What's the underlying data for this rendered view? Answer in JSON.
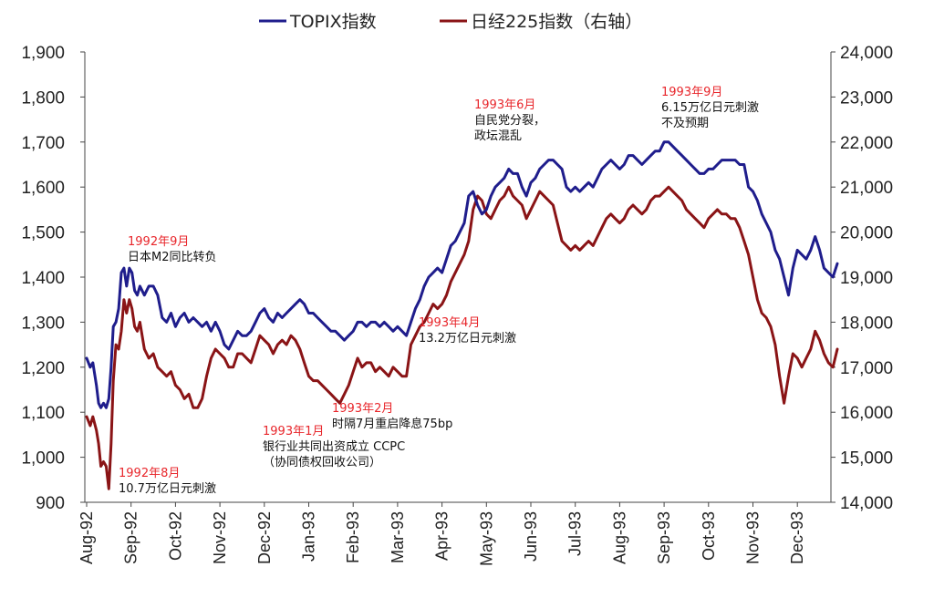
{
  "chart_data": {
    "type": "line",
    "title": "",
    "legend": [
      "TOPIX指数",
      "日经225指数（右轴）"
    ],
    "legend_position": "top",
    "x_ticks": [
      "Aug-92",
      "Sep-92",
      "Oct-92",
      "Nov-92",
      "Dec-92",
      "Jan-93",
      "Feb-93",
      "Mar-93",
      "Apr-93",
      "May-93",
      "Jun-93",
      "Jul-93",
      "Aug-93",
      "Sep-93",
      "Oct-93",
      "Nov-93",
      "Dec-93"
    ],
    "y_left": {
      "min": 900,
      "max": 1900,
      "step": 100,
      "ticks": [
        "900",
        "1,000",
        "1,100",
        "1,200",
        "1,300",
        "1,400",
        "1,500",
        "1,600",
        "1,700",
        "1,800",
        "1,900"
      ]
    },
    "y_right": {
      "min": 14000,
      "max": 24000,
      "step": 1000,
      "ticks": [
        "14,000",
        "15,000",
        "16,000",
        "17,000",
        "18,000",
        "19,000",
        "20,000",
        "21,000",
        "22,000",
        "23,000",
        "24,000"
      ]
    },
    "series": [
      {
        "name": "TOPIX指数",
        "axis": "left",
        "color": "#1f1d8c",
        "x": [
          0,
          0.08,
          0.14,
          0.22,
          0.27,
          0.32,
          0.38,
          0.44,
          0.5,
          0.55,
          0.6,
          0.66,
          0.72,
          0.78,
          0.84,
          0.9,
          0.96,
          1.02,
          1.08,
          1.14,
          1.2,
          1.3,
          1.4,
          1.5,
          1.6,
          1.7,
          1.8,
          1.9,
          2.0,
          2.1,
          2.2,
          2.3,
          2.4,
          2.5,
          2.6,
          2.7,
          2.8,
          2.9,
          3.0,
          3.1,
          3.2,
          3.3,
          3.4,
          3.5,
          3.6,
          3.7,
          3.8,
          3.9,
          4.0,
          4.1,
          4.2,
          4.3,
          4.4,
          4.5,
          4.6,
          4.7,
          4.8,
          4.9,
          5.0,
          5.1,
          5.2,
          5.3,
          5.4,
          5.5,
          5.6,
          5.7,
          5.8,
          5.9,
          6.0,
          6.1,
          6.2,
          6.3,
          6.4,
          6.5,
          6.6,
          6.7,
          6.8,
          6.9,
          7.0,
          7.1,
          7.2,
          7.3,
          7.4,
          7.5,
          7.6,
          7.7,
          7.8,
          7.9,
          8.0,
          8.1,
          8.2,
          8.3,
          8.4,
          8.5,
          8.6,
          8.7,
          8.8,
          8.9,
          9.0,
          9.1,
          9.2,
          9.3,
          9.4,
          9.5,
          9.6,
          9.7,
          9.8,
          9.9,
          10.0,
          10.1,
          10.2,
          10.3,
          10.4,
          10.5,
          10.6,
          10.7,
          10.8,
          10.9,
          11.0,
          11.1,
          11.2,
          11.3,
          11.4,
          11.5,
          11.6,
          11.7,
          11.8,
          11.9,
          12.0,
          12.1,
          12.2,
          12.3,
          12.4,
          12.5,
          12.6,
          12.7,
          12.8,
          12.9,
          13.0,
          13.1,
          13.2,
          13.3,
          13.4,
          13.5,
          13.6,
          13.7,
          13.8,
          13.9,
          14.0,
          14.1,
          14.2,
          14.3,
          14.4,
          14.5,
          14.6,
          14.7,
          14.8,
          14.9,
          15.0,
          15.1,
          15.2,
          15.3,
          15.4,
          15.5,
          15.6,
          15.7,
          15.8,
          15.9,
          16.0,
          16.1,
          16.2,
          16.3,
          16.4,
          16.5,
          16.6,
          16.7,
          16.8,
          16.9
        ],
        "values": [
          1220,
          1200,
          1210,
          1160,
          1120,
          1110,
          1120,
          1110,
          1130,
          1200,
          1290,
          1300,
          1330,
          1410,
          1420,
          1380,
          1420,
          1410,
          1370,
          1360,
          1380,
          1360,
          1380,
          1380,
          1360,
          1310,
          1300,
          1320,
          1290,
          1310,
          1320,
          1300,
          1310,
          1300,
          1290,
          1300,
          1280,
          1300,
          1280,
          1250,
          1240,
          1260,
          1280,
          1270,
          1270,
          1280,
          1300,
          1320,
          1330,
          1310,
          1300,
          1320,
          1310,
          1320,
          1330,
          1340,
          1350,
          1340,
          1320,
          1320,
          1310,
          1300,
          1290,
          1280,
          1280,
          1270,
          1260,
          1270,
          1280,
          1300,
          1300,
          1290,
          1300,
          1300,
          1290,
          1300,
          1290,
          1280,
          1290,
          1280,
          1270,
          1300,
          1330,
          1350,
          1380,
          1400,
          1410,
          1420,
          1410,
          1440,
          1470,
          1480,
          1500,
          1520,
          1580,
          1590,
          1560,
          1540,
          1550,
          1580,
          1600,
          1610,
          1620,
          1640,
          1630,
          1630,
          1600,
          1580,
          1610,
          1620,
          1640,
          1650,
          1660,
          1660,
          1650,
          1640,
          1600,
          1590,
          1600,
          1590,
          1600,
          1610,
          1600,
          1620,
          1640,
          1650,
          1660,
          1650,
          1640,
          1650,
          1670,
          1670,
          1660,
          1650,
          1660,
          1670,
          1680,
          1680,
          1700,
          1700,
          1690,
          1680,
          1670,
          1660,
          1650,
          1640,
          1630,
          1630,
          1640,
          1640,
          1650,
          1660,
          1660,
          1660,
          1660,
          1650,
          1650,
          1600,
          1590,
          1570,
          1540,
          1520,
          1500,
          1460,
          1440,
          1400,
          1360,
          1420,
          1460,
          1450,
          1440,
          1460,
          1490,
          1460,
          1420,
          1410,
          1400,
          1430
        ]
      },
      {
        "name": "日经225指数（右轴）",
        "axis": "right",
        "color": "#8a1416",
        "x": [
          0,
          0.08,
          0.14,
          0.22,
          0.27,
          0.32,
          0.38,
          0.44,
          0.5,
          0.55,
          0.6,
          0.66,
          0.72,
          0.78,
          0.84,
          0.9,
          0.96,
          1.02,
          1.08,
          1.14,
          1.2,
          1.3,
          1.4,
          1.5,
          1.6,
          1.7,
          1.8,
          1.9,
          2.0,
          2.1,
          2.2,
          2.3,
          2.4,
          2.5,
          2.6,
          2.7,
          2.8,
          2.9,
          3.0,
          3.1,
          3.2,
          3.3,
          3.4,
          3.5,
          3.6,
          3.7,
          3.8,
          3.9,
          4.0,
          4.1,
          4.2,
          4.3,
          4.4,
          4.5,
          4.6,
          4.7,
          4.8,
          4.9,
          5.0,
          5.1,
          5.2,
          5.3,
          5.4,
          5.5,
          5.6,
          5.7,
          5.8,
          5.9,
          6.0,
          6.1,
          6.2,
          6.3,
          6.4,
          6.5,
          6.6,
          6.7,
          6.8,
          6.9,
          7.0,
          7.1,
          7.2,
          7.3,
          7.4,
          7.5,
          7.6,
          7.7,
          7.8,
          7.9,
          8.0,
          8.1,
          8.2,
          8.3,
          8.4,
          8.5,
          8.6,
          8.7,
          8.8,
          8.9,
          9.0,
          9.1,
          9.2,
          9.3,
          9.4,
          9.5,
          9.6,
          9.7,
          9.8,
          9.9,
          10.0,
          10.1,
          10.2,
          10.3,
          10.4,
          10.5,
          10.6,
          10.7,
          10.8,
          10.9,
          11.0,
          11.1,
          11.2,
          11.3,
          11.4,
          11.5,
          11.6,
          11.7,
          11.8,
          11.9,
          12.0,
          12.1,
          12.2,
          12.3,
          12.4,
          12.5,
          12.6,
          12.7,
          12.8,
          12.9,
          13.0,
          13.1,
          13.2,
          13.3,
          13.4,
          13.5,
          13.6,
          13.7,
          13.8,
          13.9,
          14.0,
          14.1,
          14.2,
          14.3,
          14.4,
          14.5,
          14.6,
          14.7,
          14.8,
          14.9,
          15.0,
          15.1,
          15.2,
          15.3,
          15.4,
          15.5,
          15.6,
          15.7,
          15.8,
          15.9,
          16.0,
          16.1,
          16.2,
          16.3,
          16.4,
          16.5,
          16.6,
          16.7,
          16.8,
          16.9
        ],
        "values": [
          15900,
          15700,
          15900,
          15600,
          15300,
          14800,
          14900,
          14800,
          14300,
          15300,
          16700,
          17500,
          17400,
          17800,
          18500,
          18200,
          18500,
          18300,
          17900,
          17800,
          18000,
          17400,
          17200,
          17300,
          17000,
          16900,
          16800,
          16900,
          16600,
          16500,
          16300,
          16400,
          16100,
          16100,
          16300,
          16800,
          17200,
          17400,
          17300,
          17200,
          17000,
          17000,
          17300,
          17300,
          17200,
          17100,
          17400,
          17700,
          17600,
          17500,
          17300,
          17500,
          17600,
          17500,
          17700,
          17600,
          17400,
          17100,
          16800,
          16700,
          16700,
          16600,
          16500,
          16400,
          16300,
          16200,
          16400,
          16600,
          16900,
          17200,
          17000,
          17100,
          17100,
          16900,
          17000,
          16900,
          16800,
          17000,
          16900,
          16800,
          16800,
          17500,
          17700,
          17900,
          18000,
          18200,
          18400,
          18300,
          18400,
          18600,
          18900,
          19100,
          19300,
          19500,
          19800,
          20500,
          20800,
          20700,
          20400,
          20300,
          20500,
          20700,
          20800,
          21000,
          20800,
          20700,
          20600,
          20300,
          20500,
          20700,
          20900,
          20800,
          20700,
          20600,
          20200,
          19800,
          19700,
          19600,
          19700,
          19600,
          19700,
          19800,
          19700,
          19900,
          20100,
          20300,
          20400,
          20300,
          20200,
          20300,
          20500,
          20600,
          20500,
          20400,
          20500,
          20700,
          20800,
          20800,
          20900,
          21000,
          20900,
          20800,
          20700,
          20500,
          20400,
          20300,
          20200,
          20100,
          20300,
          20400,
          20500,
          20400,
          20400,
          20300,
          20300,
          20100,
          19800,
          19500,
          19000,
          18500,
          18200,
          18100,
          17900,
          17500,
          16800,
          16200,
          16800,
          17300,
          17200,
          17000,
          17200,
          17400,
          17800,
          17600,
          17300,
          17100,
          17000,
          17400
        ]
      }
    ],
    "annotations": [
      {
        "date": "1992年9月",
        "text": [
          "日本M2同比转负"
        ]
      },
      {
        "date": "1992年8月",
        "text": [
          "10.7万亿日元刺激"
        ]
      },
      {
        "date": "1993年1月",
        "text": [
          "银行业共同出资成立 CCPC",
          "（协同债权回收公司）"
        ]
      },
      {
        "date": "1993年2月",
        "text": [
          "时隔7月重启降息75bp"
        ]
      },
      {
        "date": "1993年4月",
        "text": [
          "13.2万亿日元刺激"
        ]
      },
      {
        "date": "1993年6月",
        "text": [
          "自民党分裂，",
          "政坛混乱"
        ]
      },
      {
        "date": "1993年9月",
        "text": [
          "6.15万亿日元刺激",
          "不及预期"
        ]
      }
    ]
  }
}
